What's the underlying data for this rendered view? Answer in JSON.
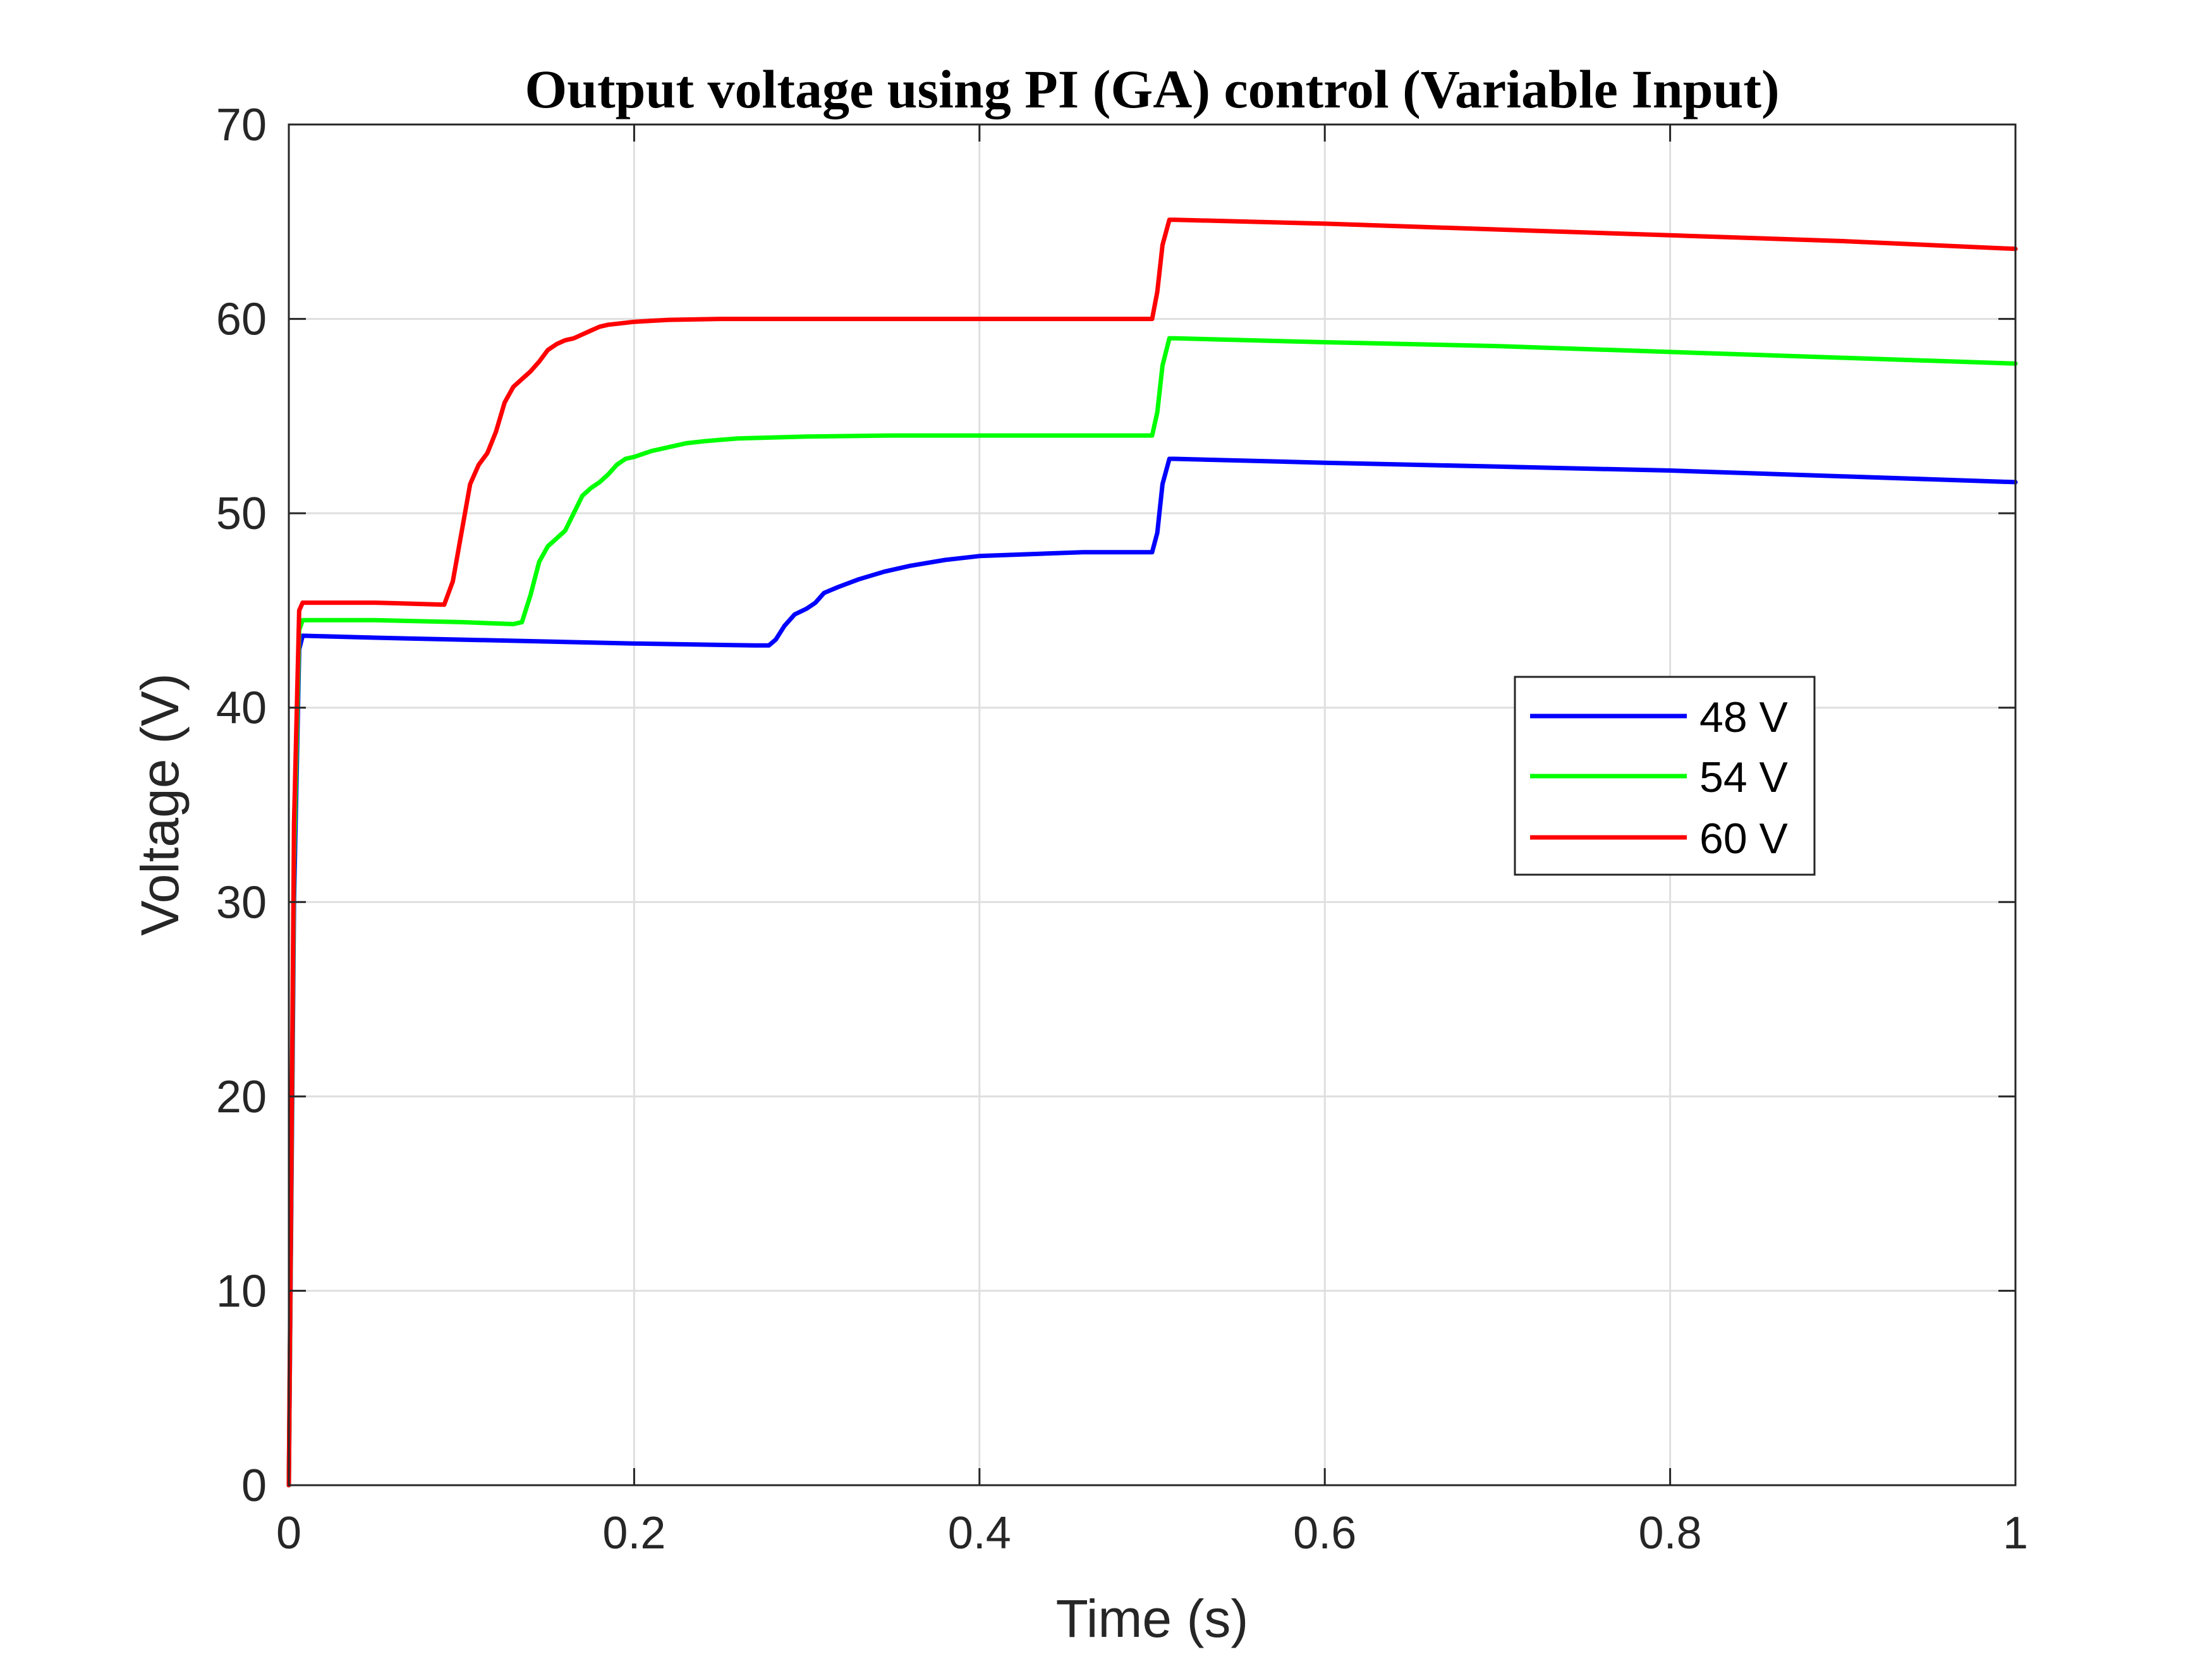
{
  "chart_data": {
    "type": "line",
    "title": "Output voltage using PI (GA) control (Variable Input)",
    "xlabel": "Time (s)",
    "ylabel": "Voltage (V)",
    "xlim": [
      0,
      1
    ],
    "ylim": [
      0,
      70
    ],
    "xticks": [
      0,
      0.2,
      0.4,
      0.6,
      0.8,
      1
    ],
    "xtick_labels": [
      "0",
      "0.2",
      "0.4",
      "0.6",
      "0.8",
      "1"
    ],
    "yticks": [
      0,
      10,
      20,
      30,
      40,
      50,
      60,
      70
    ],
    "ytick_labels": [
      "0",
      "10",
      "20",
      "30",
      "40",
      "50",
      "60",
      "70"
    ],
    "grid": true,
    "legend_position": "right",
    "series": [
      {
        "name": "48 V",
        "color": "#0000ff",
        "x": [
          0,
          0.003,
          0.006,
          0.008,
          0.05,
          0.1,
          0.2,
          0.27,
          0.278,
          0.282,
          0.287,
          0.293,
          0.3,
          0.305,
          0.31,
          0.318,
          0.33,
          0.345,
          0.36,
          0.38,
          0.4,
          0.43,
          0.46,
          0.5,
          0.503,
          0.506,
          0.51,
          0.513,
          0.6,
          0.7,
          0.8,
          0.9,
          1.0
        ],
        "y": [
          0,
          30,
          43,
          43.7,
          43.6,
          43.5,
          43.3,
          43.2,
          43.2,
          43.5,
          44.2,
          44.8,
          45.1,
          45.4,
          45.9,
          46.2,
          46.6,
          47.0,
          47.3,
          47.6,
          47.8,
          47.9,
          48.0,
          48.0,
          49.0,
          51.5,
          52.8,
          52.8,
          52.6,
          52.4,
          52.2,
          51.9,
          51.6
        ]
      },
      {
        "name": "54 V",
        "color": "#00ff00",
        "x": [
          0,
          0.003,
          0.006,
          0.008,
          0.05,
          0.1,
          0.13,
          0.135,
          0.14,
          0.145,
          0.15,
          0.155,
          0.16,
          0.165,
          0.17,
          0.175,
          0.18,
          0.185,
          0.19,
          0.195,
          0.2,
          0.21,
          0.22,
          0.23,
          0.24,
          0.26,
          0.28,
          0.3,
          0.35,
          0.4,
          0.45,
          0.5,
          0.503,
          0.506,
          0.51,
          0.513,
          0.6,
          0.7,
          0.8,
          0.9,
          1.0
        ],
        "y": [
          0,
          32,
          44,
          44.5,
          44.5,
          44.4,
          44.3,
          44.4,
          45.8,
          47.5,
          48.3,
          48.7,
          49.1,
          50.0,
          50.9,
          51.3,
          51.6,
          52.0,
          52.5,
          52.8,
          52.9,
          53.2,
          53.4,
          53.6,
          53.7,
          53.85,
          53.9,
          53.95,
          54.0,
          54.0,
          54.0,
          54.0,
          55.2,
          57.6,
          59.0,
          59.0,
          58.8,
          58.6,
          58.3,
          58.0,
          57.7
        ]
      },
      {
        "name": "60 V",
        "color": "#ff0000",
        "x": [
          0,
          0.003,
          0.006,
          0.008,
          0.05,
          0.09,
          0.095,
          0.1,
          0.105,
          0.11,
          0.115,
          0.12,
          0.125,
          0.13,
          0.135,
          0.14,
          0.145,
          0.15,
          0.155,
          0.16,
          0.165,
          0.17,
          0.175,
          0.18,
          0.185,
          0.19,
          0.2,
          0.21,
          0.22,
          0.25,
          0.3,
          0.4,
          0.5,
          0.503,
          0.506,
          0.51,
          0.513,
          0.6,
          0.7,
          0.8,
          0.9,
          1.0
        ],
        "y": [
          0,
          34,
          45,
          45.4,
          45.4,
          45.3,
          46.5,
          49.0,
          51.5,
          52.5,
          53.1,
          54.2,
          55.7,
          56.5,
          56.9,
          57.3,
          57.8,
          58.4,
          58.7,
          58.9,
          59.0,
          59.2,
          59.4,
          59.6,
          59.7,
          59.75,
          59.85,
          59.9,
          59.95,
          60.0,
          60.0,
          60.0,
          60.0,
          61.4,
          63.8,
          65.1,
          65.1,
          64.9,
          64.6,
          64.3,
          64.0,
          63.6
        ]
      }
    ]
  }
}
